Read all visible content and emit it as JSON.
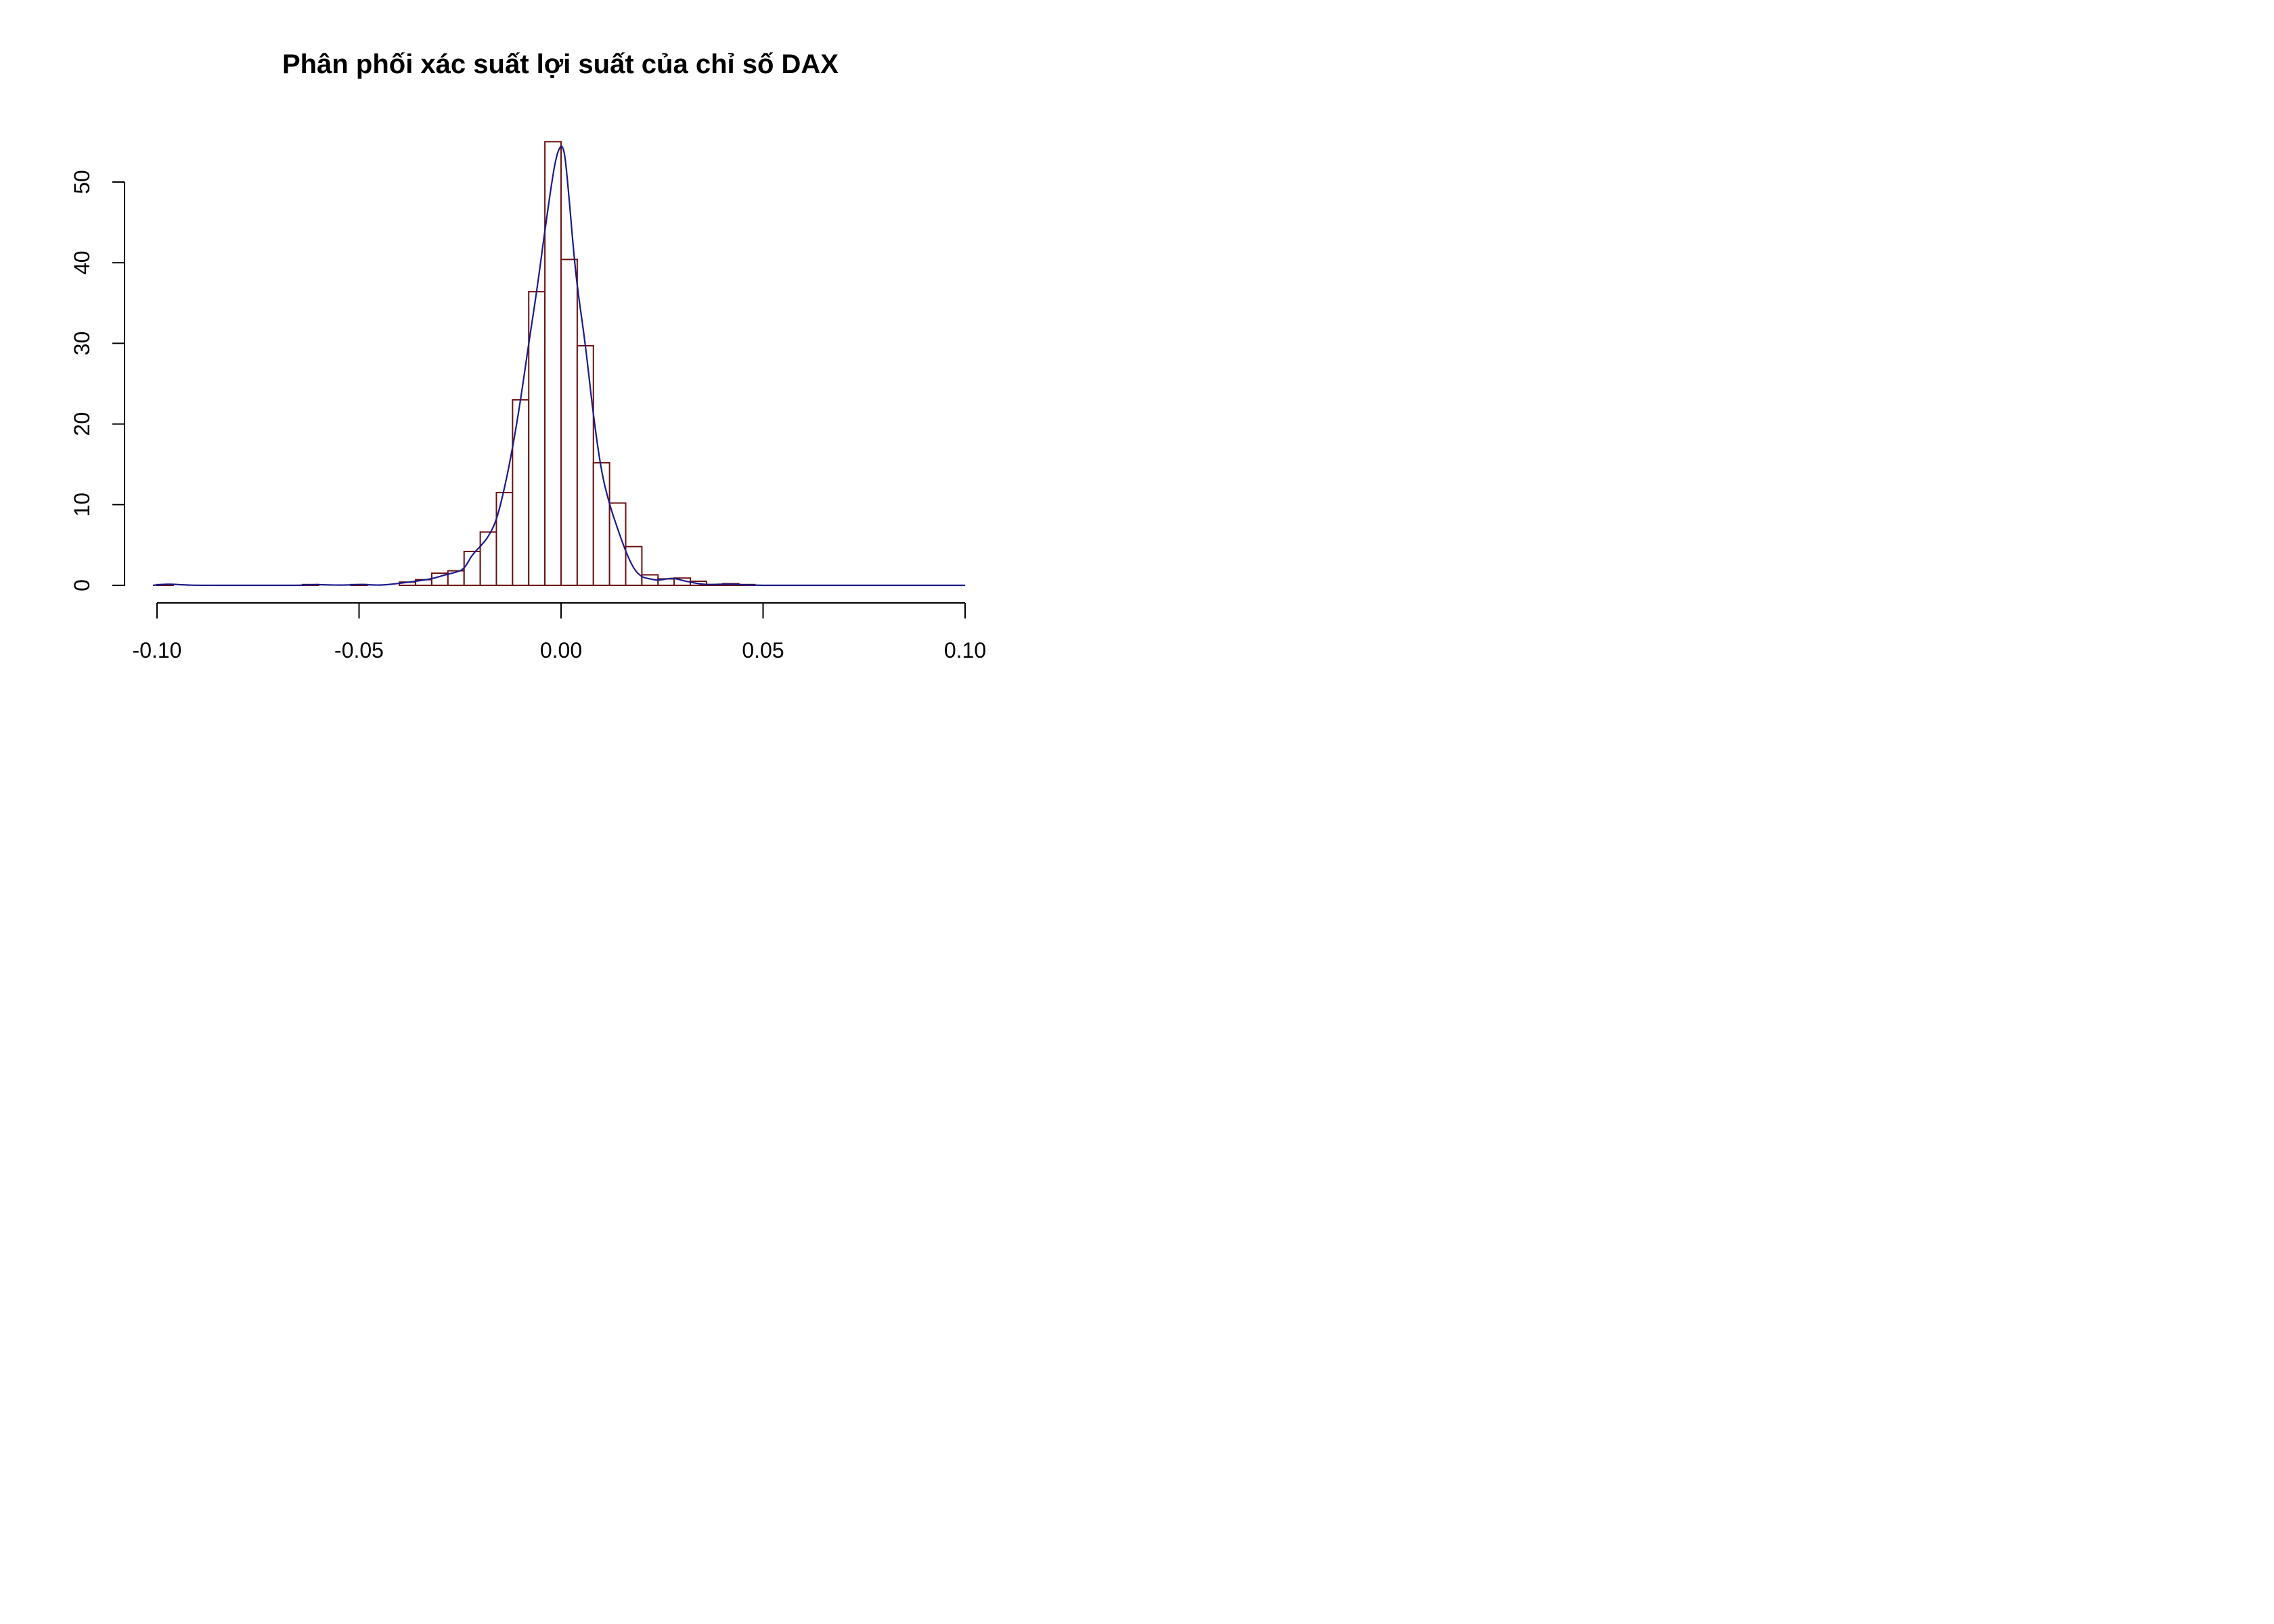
{
  "chart_data": {
    "type": "histogram",
    "title": "Phân phối xác suất lợi suất của chỉ số DAX",
    "xlabel": "",
    "ylabel": "",
    "xlim": [
      -0.1,
      0.1
    ],
    "ylim": [
      0,
      55
    ],
    "x_ticks": [
      -0.1,
      -0.05,
      0.0,
      0.05,
      0.1
    ],
    "x_tick_labels": [
      "-0.10",
      "-0.05",
      "0.00",
      "0.05",
      "0.10"
    ],
    "y_ticks": [
      0,
      10,
      20,
      30,
      40,
      50
    ],
    "y_tick_labels": [
      "0",
      "10",
      "20",
      "30",
      "40",
      "50"
    ],
    "grid": false,
    "legend": "none",
    "bin_width": 0.004,
    "bins": {
      "starts": [
        -0.1,
        -0.096,
        -0.092,
        -0.088,
        -0.084,
        -0.08,
        -0.076,
        -0.072,
        -0.068,
        -0.064,
        -0.06,
        -0.056,
        -0.052,
        -0.048,
        -0.044,
        -0.04,
        -0.036,
        -0.032,
        -0.028,
        -0.024,
        -0.02,
        -0.016,
        -0.012,
        -0.008,
        -0.004,
        0.0,
        0.004,
        0.008,
        0.012,
        0.016,
        0.02,
        0.024,
        0.028,
        0.032,
        0.036,
        0.04,
        0.044,
        0.048,
        0.052,
        0.056,
        0.06,
        0.064,
        0.068,
        0.072,
        0.076,
        0.08,
        0.084,
        0.088,
        0.092,
        0.096
      ],
      "density": [
        0.1,
        0,
        0,
        0,
        0,
        0,
        0,
        0,
        0,
        0.1,
        0,
        0,
        0.1,
        0,
        0,
        0.4,
        0.7,
        1.5,
        1.8,
        4.2,
        6.6,
        11.5,
        23.0,
        36.4,
        55.0,
        40.4,
        29.7,
        15.2,
        10.2,
        4.8,
        1.3,
        0.8,
        0.9,
        0.5,
        0.1,
        0.2,
        0.1,
        0,
        0,
        0,
        0,
        0,
        0,
        0,
        0,
        0,
        0,
        0,
        0,
        0
      ]
    },
    "density_curve": {
      "name": "",
      "x": [
        -0.101,
        -0.099,
        -0.097,
        -0.095,
        -0.093,
        -0.09,
        -0.08,
        -0.07,
        -0.064,
        -0.062,
        -0.06,
        -0.058,
        -0.054,
        -0.051,
        -0.049,
        -0.047,
        -0.044,
        -0.04,
        -0.036,
        -0.032,
        -0.028,
        -0.026,
        -0.024,
        -0.022,
        -0.02,
        -0.018,
        -0.016,
        -0.014,
        -0.012,
        -0.01,
        -0.008,
        -0.006,
        -0.004,
        -0.002,
        -0.001,
        0.0,
        0.0005,
        0.001,
        0.002,
        0.003,
        0.004,
        0.006,
        0.008,
        0.01,
        0.012,
        0.014,
        0.016,
        0.018,
        0.02,
        0.022,
        0.024,
        0.026,
        0.028,
        0.03,
        0.032,
        0.034,
        0.036,
        0.038,
        0.04,
        0.042,
        0.044,
        0.046,
        0.048,
        0.05,
        0.052,
        0.055,
        0.06,
        0.07,
        0.08,
        0.09,
        0.1
      ],
      "y": [
        0.0,
        0.1,
        0.15,
        0.1,
        0.05,
        0.0,
        0.0,
        0.0,
        0.0,
        0.08,
        0.1,
        0.05,
        0.02,
        0.08,
        0.12,
        0.05,
        0.02,
        0.25,
        0.5,
        0.8,
        1.4,
        1.6,
        2.0,
        3.8,
        4.8,
        6.0,
        8.0,
        12.0,
        17.0,
        23.0,
        30.0,
        36.5,
        44.0,
        51.0,
        53.5,
        54.6,
        54.2,
        53.2,
        48.0,
        42.0,
        37.0,
        30.0,
        21.0,
        14.0,
        10.0,
        7.0,
        4.2,
        2.0,
        1.0,
        0.8,
        0.6,
        0.8,
        0.9,
        0.6,
        0.4,
        0.2,
        0.1,
        0.1,
        0.15,
        0.15,
        0.1,
        0.05,
        0.02,
        0.0,
        0.0,
        0.0,
        0.0,
        0.0,
        0.0,
        0.0,
        0.0
      ]
    },
    "colors": {
      "bar_stroke": "#6b0f0f",
      "bar_fill": "#ffffff",
      "curve": "#1a1a8c",
      "axis": "#000000"
    }
  }
}
